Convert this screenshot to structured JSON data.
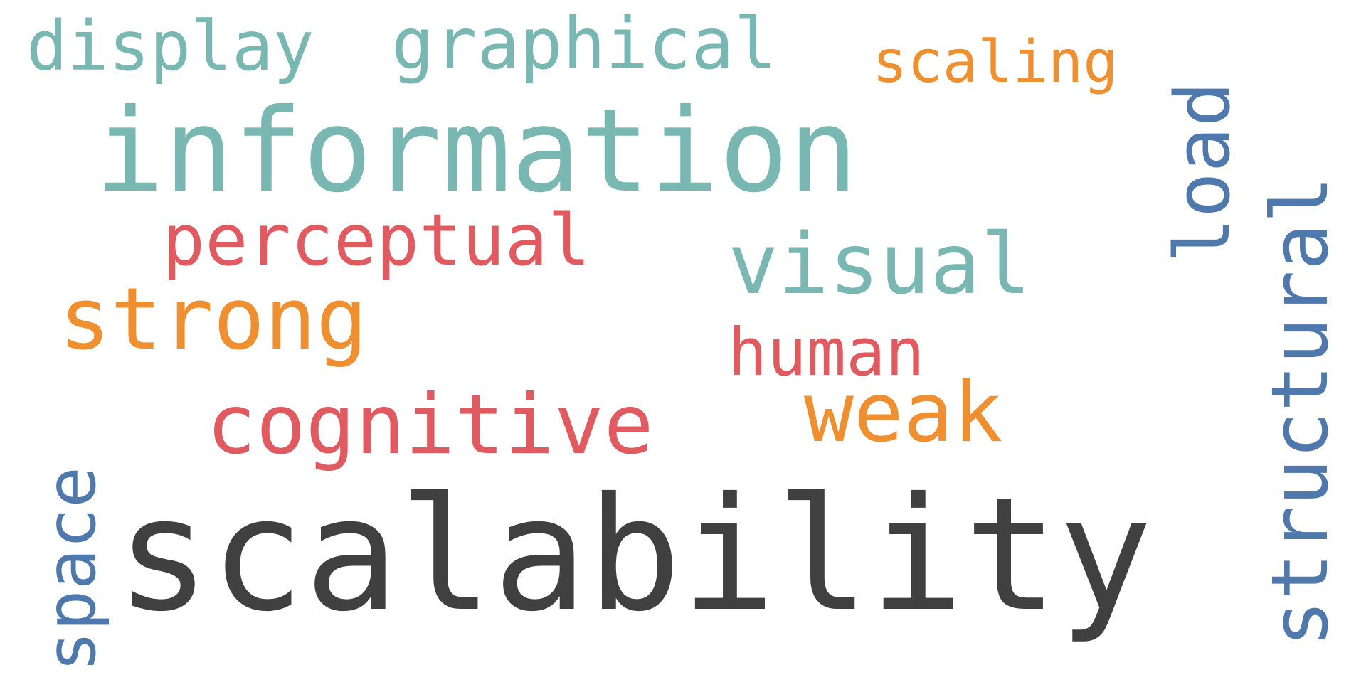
{
  "colors": {
    "background": "#ffffff",
    "teal": "#79b7b3",
    "orange": "#f08f2f",
    "red": "#e05a5f",
    "blue": "#4f78ad",
    "dark": "#404040"
  },
  "words": {
    "display": {
      "text": "display",
      "color": "#79b7b3"
    },
    "graphical": {
      "text": "graphical",
      "color": "#79b7b3"
    },
    "scaling": {
      "text": "scaling",
      "color": "#f08f2f"
    },
    "load": {
      "text": "load",
      "color": "#4f78ad"
    },
    "structural": {
      "text": "structural",
      "color": "#4f78ad"
    },
    "information": {
      "text": "information",
      "color": "#79b7b3"
    },
    "perceptual": {
      "text": "perceptual",
      "color": "#e05a5f"
    },
    "visual": {
      "text": "visual",
      "color": "#79b7b3"
    },
    "strong": {
      "text": "strong",
      "color": "#f08f2f"
    },
    "human": {
      "text": "human",
      "color": "#e05a5f"
    },
    "cognitive": {
      "text": "cognitive",
      "color": "#e05a5f"
    },
    "weak": {
      "text": "weak",
      "color": "#f08f2f"
    },
    "space": {
      "text": "space",
      "color": "#4f78ad"
    },
    "scalability": {
      "text": "scalability",
      "color": "#404040"
    }
  }
}
